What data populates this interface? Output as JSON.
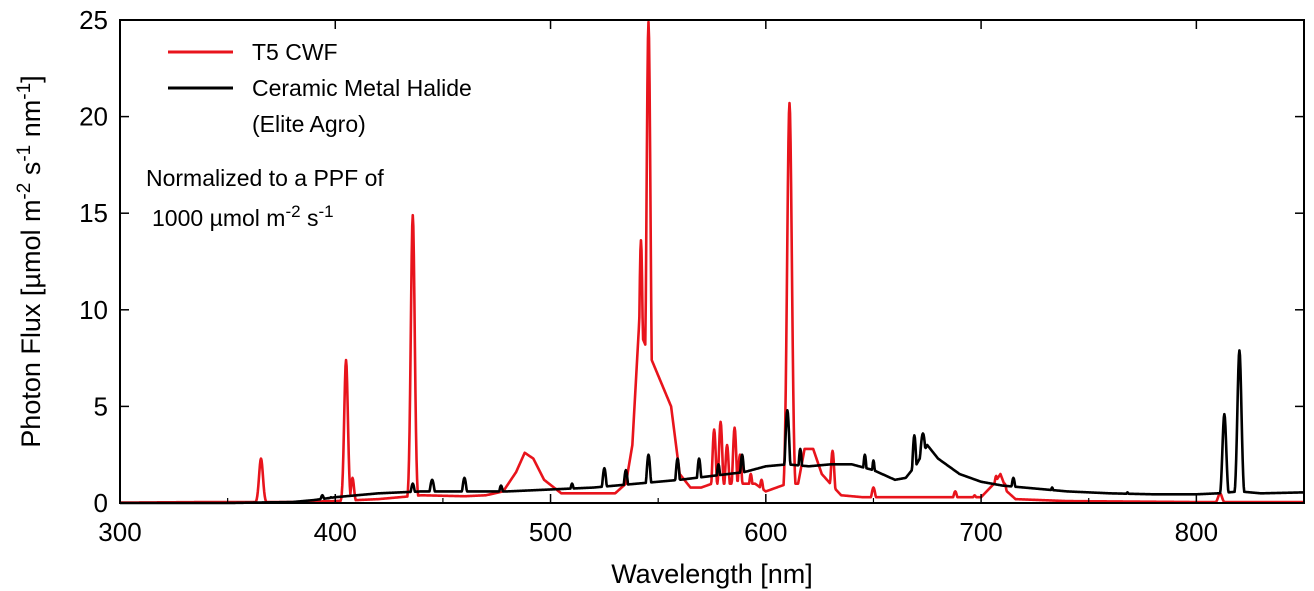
{
  "chart_data": {
    "type": "line",
    "xlabel": "Wavelength [nm]",
    "ylabel_parts": [
      "Photon Flux [",
      "µ",
      "mol m",
      "-2",
      " s",
      "-1",
      " nm",
      "-1",
      "]"
    ],
    "xlim": [
      300,
      850
    ],
    "ylim": [
      0,
      25
    ],
    "x_ticks": [
      300,
      400,
      500,
      600,
      700,
      800
    ],
    "y_ticks": [
      0,
      5,
      10,
      15,
      20,
      25
    ],
    "grid": false,
    "legend_position": "top-left",
    "annotation": {
      "line1": "Normalized to a PPF of",
      "line2_parts": [
        "1000 ",
        "µ",
        "mol m",
        "-2",
        " s",
        "-1"
      ]
    },
    "series": [
      {
        "name": "T5 CWF",
        "color": "#e8141c",
        "baseline": [
          [
            300,
            0.02
          ],
          [
            340,
            0.05
          ],
          [
            360,
            0.05
          ],
          [
            380,
            0.05
          ],
          [
            400,
            0.1
          ],
          [
            420,
            0.2
          ],
          [
            430,
            0.3
          ],
          [
            440,
            0.4
          ],
          [
            460,
            0.35
          ],
          [
            470,
            0.4
          ],
          [
            478,
            0.6
          ],
          [
            484,
            1.6
          ],
          [
            488,
            2.6
          ],
          [
            492,
            2.3
          ],
          [
            497,
            1.2
          ],
          [
            505,
            0.5
          ],
          [
            520,
            0.5
          ],
          [
            530,
            0.5
          ],
          [
            535,
            1.0
          ],
          [
            538,
            3.0
          ],
          [
            541,
            9.0
          ],
          [
            556,
            5.0
          ],
          [
            560,
            1.5
          ],
          [
            565,
            0.8
          ],
          [
            570,
            0.8
          ],
          [
            575,
            1.0
          ],
          [
            595,
            1.0
          ],
          [
            600,
            0.6
          ],
          [
            605,
            0.8
          ],
          [
            610,
            1.0
          ],
          [
            615,
            1.0
          ],
          [
            618,
            2.8
          ],
          [
            622,
            2.8
          ],
          [
            626,
            1.5
          ],
          [
            630,
            1.0
          ],
          [
            635,
            0.4
          ],
          [
            645,
            0.3
          ],
          [
            655,
            0.3
          ],
          [
            700,
            0.3
          ],
          [
            706,
            1.0
          ],
          [
            709,
            1.5
          ],
          [
            712,
            0.6
          ],
          [
            716,
            0.2
          ],
          [
            740,
            0.1
          ],
          [
            800,
            0.05
          ],
          [
            850,
            0.05
          ]
        ],
        "peaks": [
          {
            "x": 365.5,
            "y": 2.3,
            "w": 0.9
          },
          {
            "x": 405,
            "y": 7.4,
            "w": 0.85
          },
          {
            "x": 408,
            "y": 1.3,
            "w": 0.7
          },
          {
            "x": 436,
            "y": 14.9,
            "w": 0.9
          },
          {
            "x": 542,
            "y": 13.6,
            "w": 0.9
          },
          {
            "x": 545.5,
            "y": 24.9,
            "w": 0.95
          },
          {
            "x": 576,
            "y": 3.8,
            "w": 0.8
          },
          {
            "x": 579,
            "y": 4.2,
            "w": 0.8
          },
          {
            "x": 582,
            "y": 3.0,
            "w": 0.8
          },
          {
            "x": 585.5,
            "y": 3.9,
            "w": 0.8
          },
          {
            "x": 588,
            "y": 2.5,
            "w": 0.8
          },
          {
            "x": 593,
            "y": 1.5,
            "w": 0.8
          },
          {
            "x": 598,
            "y": 1.2,
            "w": 0.8
          },
          {
            "x": 611,
            "y": 20.7,
            "w": 1.1
          },
          {
            "x": 631,
            "y": 2.7,
            "w": 0.8
          },
          {
            "x": 650,
            "y": 0.8,
            "w": 0.8
          },
          {
            "x": 688,
            "y": 0.6,
            "w": 0.8
          },
          {
            "x": 697,
            "y": 0.4,
            "w": 0.8
          },
          {
            "x": 707,
            "y": 1.4,
            "w": 0.9
          },
          {
            "x": 711,
            "y": 1.0,
            "w": 0.8
          },
          {
            "x": 811,
            "y": 0.5,
            "w": 0.9
          }
        ]
      },
      {
        "name": "Ceramic Metal Halide\n(Elite Agro)",
        "color": "#000000",
        "baseline": [
          [
            300,
            0.0
          ],
          [
            350,
            0.0
          ],
          [
            380,
            0.05
          ],
          [
            390,
            0.15
          ],
          [
            400,
            0.3
          ],
          [
            420,
            0.5
          ],
          [
            440,
            0.6
          ],
          [
            460,
            0.6
          ],
          [
            480,
            0.6
          ],
          [
            500,
            0.7
          ],
          [
            520,
            0.8
          ],
          [
            540,
            1.0
          ],
          [
            560,
            1.2
          ],
          [
            575,
            1.4
          ],
          [
            590,
            1.6
          ],
          [
            600,
            1.9
          ],
          [
            610,
            2.0
          ],
          [
            620,
            1.9
          ],
          [
            630,
            2.0
          ],
          [
            640,
            2.0
          ],
          [
            650,
            1.7
          ],
          [
            660,
            1.2
          ],
          [
            665,
            1.3
          ],
          [
            670,
            2.0
          ],
          [
            675,
            3.0
          ],
          [
            680,
            2.3
          ],
          [
            690,
            1.5
          ],
          [
            700,
            1.1
          ],
          [
            710,
            0.9
          ],
          [
            720,
            0.8
          ],
          [
            740,
            0.6
          ],
          [
            760,
            0.5
          ],
          [
            780,
            0.45
          ],
          [
            800,
            0.45
          ],
          [
            810,
            0.5
          ],
          [
            820,
            0.6
          ],
          [
            830,
            0.5
          ],
          [
            850,
            0.55
          ]
        ],
        "peaks": [
          {
            "x": 394,
            "y": 0.4,
            "w": 0.7
          },
          {
            "x": 398,
            "y": 0.3,
            "w": 0.7
          },
          {
            "x": 436,
            "y": 1.0,
            "w": 0.9
          },
          {
            "x": 445,
            "y": 1.2,
            "w": 1.0
          },
          {
            "x": 460,
            "y": 1.3,
            "w": 0.9
          },
          {
            "x": 477,
            "y": 0.9,
            "w": 0.9
          },
          {
            "x": 510,
            "y": 1.0,
            "w": 0.9
          },
          {
            "x": 525,
            "y": 1.8,
            "w": 0.9
          },
          {
            "x": 535,
            "y": 1.7,
            "w": 0.9
          },
          {
            "x": 545.5,
            "y": 2.5,
            "w": 0.9
          },
          {
            "x": 559,
            "y": 2.3,
            "w": 0.9
          },
          {
            "x": 569,
            "y": 2.3,
            "w": 0.9
          },
          {
            "x": 578,
            "y": 2.0,
            "w": 0.9
          },
          {
            "x": 589,
            "y": 2.5,
            "w": 0.9
          },
          {
            "x": 610,
            "y": 4.8,
            "w": 1.0
          },
          {
            "x": 616,
            "y": 2.8,
            "w": 0.9
          },
          {
            "x": 646,
            "y": 2.5,
            "w": 0.9
          },
          {
            "x": 650,
            "y": 2.2,
            "w": 0.8
          },
          {
            "x": 669,
            "y": 3.5,
            "w": 0.9
          },
          {
            "x": 673,
            "y": 3.6,
            "w": 1.5
          },
          {
            "x": 715,
            "y": 1.3,
            "w": 0.9
          },
          {
            "x": 733,
            "y": 0.8,
            "w": 0.8
          },
          {
            "x": 768,
            "y": 0.55,
            "w": 0.8
          },
          {
            "x": 813,
            "y": 4.6,
            "w": 0.9
          },
          {
            "x": 820,
            "y": 7.9,
            "w": 0.95
          }
        ]
      }
    ]
  }
}
